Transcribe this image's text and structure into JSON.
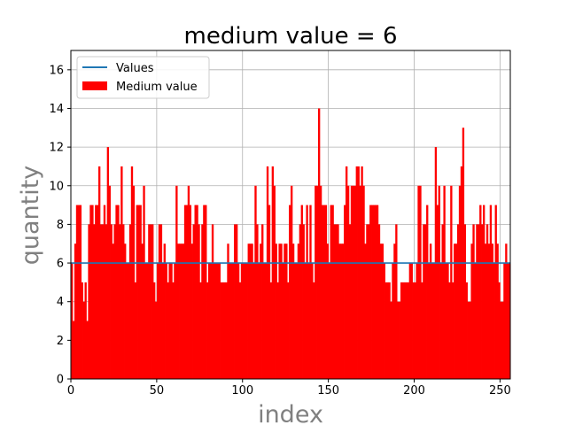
{
  "chart_data": {
    "type": "bar",
    "title": "medium value = 6",
    "xlabel": "index",
    "ylabel": "quantity",
    "xlim": [
      0,
      256
    ],
    "ylim": [
      0,
      17
    ],
    "x_ticks": [
      0,
      50,
      100,
      150,
      200,
      250
    ],
    "y_ticks": [
      0,
      2,
      4,
      6,
      8,
      10,
      12,
      14,
      16
    ],
    "grid": true,
    "legend_position": "top-left",
    "bar_color": "#ff0000",
    "line_color": "#1f77b4",
    "series": [
      {
        "name": "Values",
        "kind": "line",
        "y": 6
      },
      {
        "name": "Medium value",
        "kind": "bar",
        "values": [
          6,
          3,
          7,
          9,
          9,
          9,
          5,
          4,
          5,
          3,
          8,
          9,
          9,
          8,
          9,
          9,
          11,
          8,
          8,
          9,
          8,
          12,
          10,
          8,
          7,
          8,
          9,
          9,
          8,
          11,
          8,
          7,
          6,
          6,
          8,
          11,
          10,
          5,
          9,
          9,
          9,
          7,
          10,
          6,
          6,
          8,
          8,
          8,
          5,
          4,
          6,
          8,
          8,
          6,
          7,
          6,
          5,
          6,
          6,
          5,
          6,
          10,
          7,
          7,
          7,
          7,
          9,
          9,
          10,
          9,
          7,
          8,
          9,
          9,
          8,
          5,
          8,
          9,
          9,
          5,
          6,
          6,
          8,
          6,
          6,
          6,
          6,
          5,
          5,
          5,
          5,
          7,
          6,
          6,
          6,
          8,
          8,
          6,
          5,
          6,
          6,
          6,
          6,
          7,
          7,
          7,
          6,
          10,
          8,
          6,
          7,
          8,
          6,
          6,
          11,
          9,
          5,
          11,
          10,
          7,
          5,
          7,
          7,
          6,
          7,
          7,
          5,
          9,
          10,
          7,
          6,
          6,
          7,
          8,
          9,
          8,
          6,
          9,
          6,
          9,
          6,
          5,
          10,
          10,
          14,
          10,
          9,
          9,
          9,
          7,
          6,
          9,
          9,
          8,
          8,
          8,
          7,
          7,
          7,
          9,
          11,
          10,
          8,
          10,
          10,
          10,
          11,
          11,
          10,
          11,
          10,
          7,
          8,
          8,
          9,
          9,
          9,
          9,
          9,
          8,
          7,
          7,
          6,
          5,
          5,
          5,
          4,
          6,
          7,
          8,
          4,
          4,
          5,
          5,
          5,
          5,
          5,
          6,
          6,
          5,
          5,
          6,
          10,
          10,
          5,
          8,
          8,
          9,
          6,
          7,
          6,
          6,
          12,
          9,
          10,
          6,
          8,
          10,
          6,
          6,
          5,
          10,
          5,
          7,
          7,
          8,
          10,
          11,
          13,
          8,
          5,
          4,
          4,
          7,
          8,
          6,
          8,
          8,
          9,
          8,
          9,
          7,
          8,
          7,
          9,
          7,
          6,
          9,
          7,
          5,
          4,
          4,
          6,
          7,
          6,
          6
        ]
      }
    ]
  }
}
